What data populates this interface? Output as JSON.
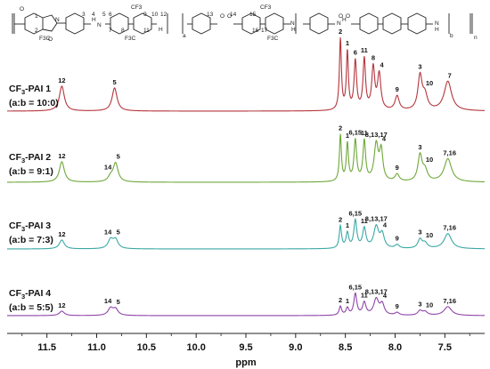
{
  "chart_data": {
    "type": "line",
    "xlabel": "ppm",
    "xlim": [
      11.9,
      7.1
    ],
    "x_reversed": true,
    "xticks": [
      "11.5",
      "11.0",
      "10.5",
      "10.0",
      "9.5",
      "9.0",
      "8.5",
      "8.0",
      "7.5"
    ],
    "structure_labels": {
      "numbers": [
        "1",
        "2",
        "3",
        "4",
        "5",
        "6",
        "7",
        "8",
        "9",
        "10",
        "11",
        "12",
        "13",
        "14",
        "15",
        "16",
        "17"
      ],
      "groups": [
        "CF3",
        "F3C",
        "CF3",
        "F3C",
        "CF3",
        "F3C",
        "CF3",
        "F3C"
      ],
      "subscripts": [
        "a",
        "b",
        "n"
      ],
      "atoms": [
        "O",
        "O",
        "N",
        "H",
        "N",
        "H",
        "O",
        "O",
        "H",
        "N",
        "N",
        "H",
        "O",
        "O"
      ]
    },
    "series": [
      {
        "name": "CF3-PAI 1",
        "name_main": "CF",
        "name_sub": "3",
        "name_rest": "-PAI 1",
        "ratio": "(a:b = 10:0)",
        "color": "#b5343c",
        "peaks": [
          {
            "ppm": 11.35,
            "height": 28,
            "width": 0.03
          },
          {
            "ppm": 10.82,
            "height": 26,
            "width": 0.03
          },
          {
            "ppm": 8.55,
            "height": 80,
            "width": 0.012
          },
          {
            "ppm": 8.48,
            "height": 65,
            "width": 0.012
          },
          {
            "ppm": 8.4,
            "height": 55,
            "width": 0.015
          },
          {
            "ppm": 8.31,
            "height": 57,
            "width": 0.015
          },
          {
            "ppm": 8.22,
            "height": 47,
            "width": 0.018
          },
          {
            "ppm": 8.16,
            "height": 40,
            "width": 0.02
          },
          {
            "ppm": 7.98,
            "height": 16,
            "width": 0.025
          },
          {
            "ppm": 7.75,
            "height": 38,
            "width": 0.025
          },
          {
            "ppm": 7.7,
            "height": 16,
            "width": 0.03
          },
          {
            "ppm": 7.47,
            "height": 33,
            "width": 0.045
          }
        ],
        "labels": [
          "12",
          "5",
          "2",
          "1",
          "6",
          "11",
          "8",
          "4",
          "9",
          "3",
          "10",
          "7"
        ]
      },
      {
        "name": "CF3-PAI 2",
        "name_main": "CF",
        "name_sub": "3",
        "name_rest": "-PAI 2",
        "ratio": "(a:b = 9:1)",
        "color": "#6ea738",
        "peaks": [
          {
            "ppm": 11.35,
            "height": 23,
            "width": 0.03
          },
          {
            "ppm": 10.86,
            "height": 5,
            "width": 0.03
          },
          {
            "ppm": 10.81,
            "height": 21,
            "width": 0.03
          },
          {
            "ppm": 8.55,
            "height": 52,
            "width": 0.012
          },
          {
            "ppm": 8.48,
            "height": 42,
            "width": 0.013
          },
          {
            "ppm": 8.4,
            "height": 46,
            "width": 0.016
          },
          {
            "ppm": 8.31,
            "height": 45,
            "width": 0.016
          },
          {
            "ppm": 8.19,
            "height": 41,
            "width": 0.025
          },
          {
            "ppm": 8.14,
            "height": 33,
            "width": 0.02
          },
          {
            "ppm": 7.98,
            "height": 8,
            "width": 0.025
          },
          {
            "ppm": 7.75,
            "height": 29,
            "width": 0.025
          },
          {
            "ppm": 7.7,
            "height": 12,
            "width": 0.03
          },
          {
            "ppm": 7.47,
            "height": 26,
            "width": 0.045
          }
        ],
        "labels": [
          "12",
          "14",
          "5",
          "2",
          "1",
          "6,15",
          "11",
          "8,13,17",
          "4",
          "9",
          "3",
          "10",
          "7,16"
        ]
      },
      {
        "name": "CF3-PAI 3",
        "name_main": "CF",
        "name_sub": "3",
        "name_rest": "-PAI 3",
        "ratio": "(a:b = 7:3)",
        "color": "#3aa8a3",
        "peaks": [
          {
            "ppm": 11.35,
            "height": 10,
            "width": 0.03
          },
          {
            "ppm": 10.86,
            "height": 10,
            "width": 0.03
          },
          {
            "ppm": 10.81,
            "height": 10,
            "width": 0.03
          },
          {
            "ppm": 8.55,
            "height": 25,
            "width": 0.014
          },
          {
            "ppm": 8.48,
            "height": 17,
            "width": 0.016
          },
          {
            "ppm": 8.4,
            "height": 31,
            "width": 0.018
          },
          {
            "ppm": 8.31,
            "height": 22,
            "width": 0.02
          },
          {
            "ppm": 8.19,
            "height": 24,
            "width": 0.03
          },
          {
            "ppm": 8.13,
            "height": 15,
            "width": 0.025
          },
          {
            "ppm": 7.98,
            "height": 4,
            "width": 0.025
          },
          {
            "ppm": 7.75,
            "height": 10,
            "width": 0.025
          },
          {
            "ppm": 7.7,
            "height": 6,
            "width": 0.03
          },
          {
            "ppm": 7.47,
            "height": 17,
            "width": 0.045
          }
        ],
        "labels": [
          "12",
          "14",
          "5",
          "2",
          "1",
          "6,15",
          "11",
          "8,13,17",
          "4",
          "9",
          "3",
          "10",
          "7,16"
        ]
      },
      {
        "name": "CF3-PAI 4",
        "name_main": "CF",
        "name_sub": "3",
        "name_rest": "-PAI 4",
        "ratio": "(a:b = 5:5)",
        "color": "#8e44a8",
        "peaks": [
          {
            "ppm": 11.35,
            "height": 5,
            "width": 0.03
          },
          {
            "ppm": 10.86,
            "height": 8,
            "width": 0.03
          },
          {
            "ppm": 10.81,
            "height": 7,
            "width": 0.03
          },
          {
            "ppm": 8.55,
            "height": 10,
            "width": 0.015
          },
          {
            "ppm": 8.48,
            "height": 8,
            "width": 0.016
          },
          {
            "ppm": 8.4,
            "height": 24,
            "width": 0.018
          },
          {
            "ppm": 8.31,
            "height": 14,
            "width": 0.02
          },
          {
            "ppm": 8.19,
            "height": 18,
            "width": 0.03
          },
          {
            "ppm": 8.13,
            "height": 12,
            "width": 0.025
          },
          {
            "ppm": 7.98,
            "height": 3,
            "width": 0.025
          },
          {
            "ppm": 7.75,
            "height": 5,
            "width": 0.025
          },
          {
            "ppm": 7.7,
            "height": 4,
            "width": 0.03
          },
          {
            "ppm": 7.47,
            "height": 10,
            "width": 0.045
          }
        ],
        "labels": [
          "12",
          "14",
          "5",
          "2",
          "1",
          "6,15",
          "11",
          "8,13,17",
          "4",
          "9",
          "3",
          "10",
          "7,16"
        ]
      }
    ]
  }
}
